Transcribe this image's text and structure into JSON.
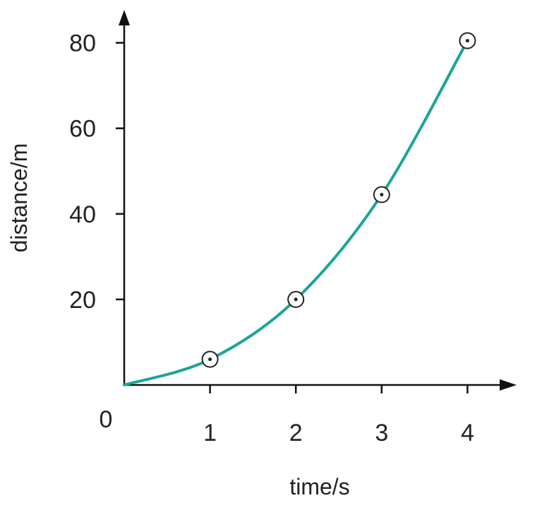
{
  "chart_data": {
    "type": "line",
    "xlabel": "time/s",
    "ylabel": "distance/m",
    "origin_label": "0",
    "xlim": [
      0,
      4.5
    ],
    "ylim": [
      0,
      84
    ],
    "x_ticks": [
      "1",
      "2",
      "3",
      "4"
    ],
    "y_ticks": [
      "20",
      "40",
      "60",
      "80"
    ],
    "series": [
      {
        "points": [
          {
            "x": 1,
            "y": 6
          },
          {
            "x": 2,
            "y": 20
          },
          {
            "x": 3,
            "y": 44.5
          },
          {
            "x": 4,
            "y": 80.5
          }
        ],
        "curve": [
          {
            "x": 0,
            "y": 0
          },
          {
            "x": 1,
            "y": 6
          },
          {
            "x": 2,
            "y": 20
          },
          {
            "x": 3,
            "y": 44.5
          },
          {
            "x": 4,
            "y": 80.5
          }
        ]
      }
    ],
    "grid": false,
    "legend": "none",
    "colors": {
      "curve": "#1aa597",
      "axis": "#111111",
      "marker": "#222222"
    }
  }
}
